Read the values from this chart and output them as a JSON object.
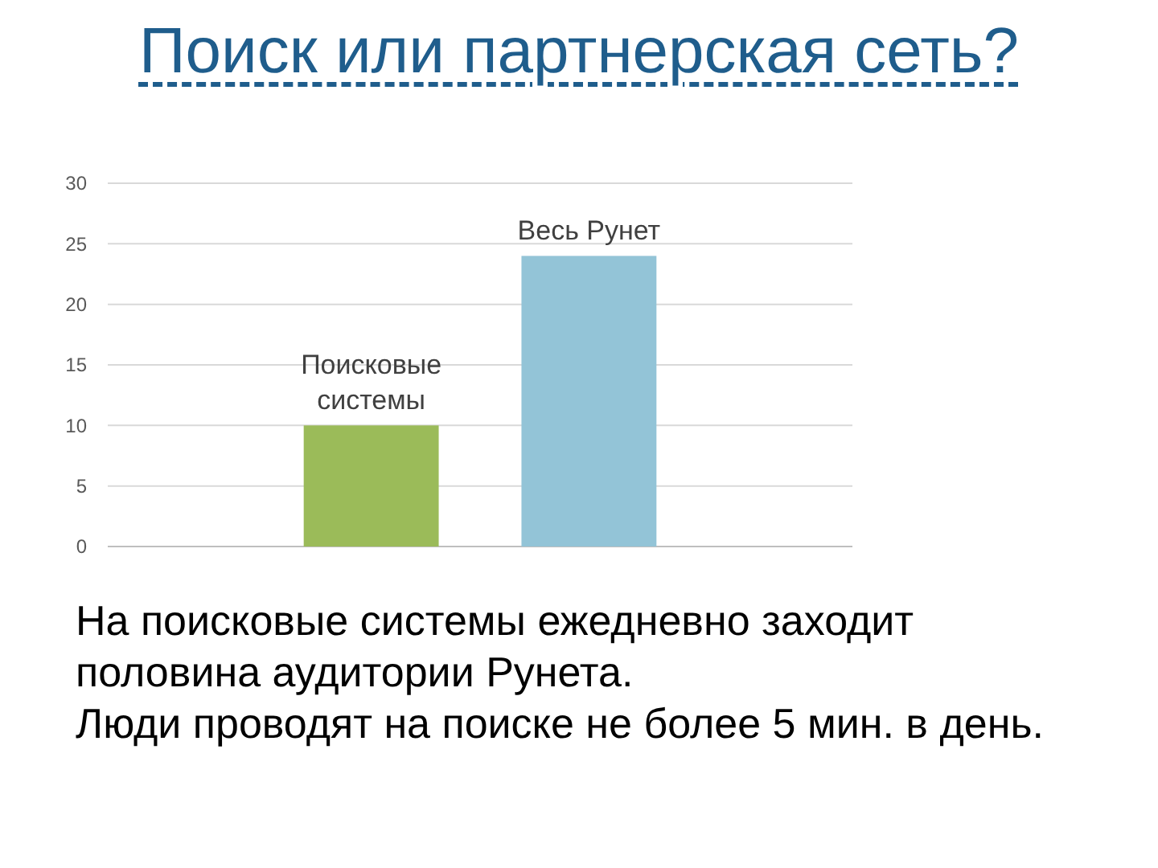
{
  "chart_data": {
    "type": "bar",
    "title": "Поиск или партнерская сеть?",
    "categories": [
      null
    ],
    "series": [
      {
        "name": "Поисковые системы",
        "color": "#9bbb59",
        "values": [
          10
        ]
      },
      {
        "name": "Весь Рунет",
        "color": "#93c4d7",
        "values": [
          24
        ]
      }
    ],
    "ylim": [
      0,
      30
    ],
    "yticks": [
      0,
      5,
      10,
      15,
      20,
      25,
      30
    ],
    "grid": "y",
    "tick_labels": "y",
    "annotations": [
      "На поисковые системы ежедневно заходит половина аудитории Рунета.",
      "Люди проводят на поиске не более 5 мин. в день."
    ]
  }
}
